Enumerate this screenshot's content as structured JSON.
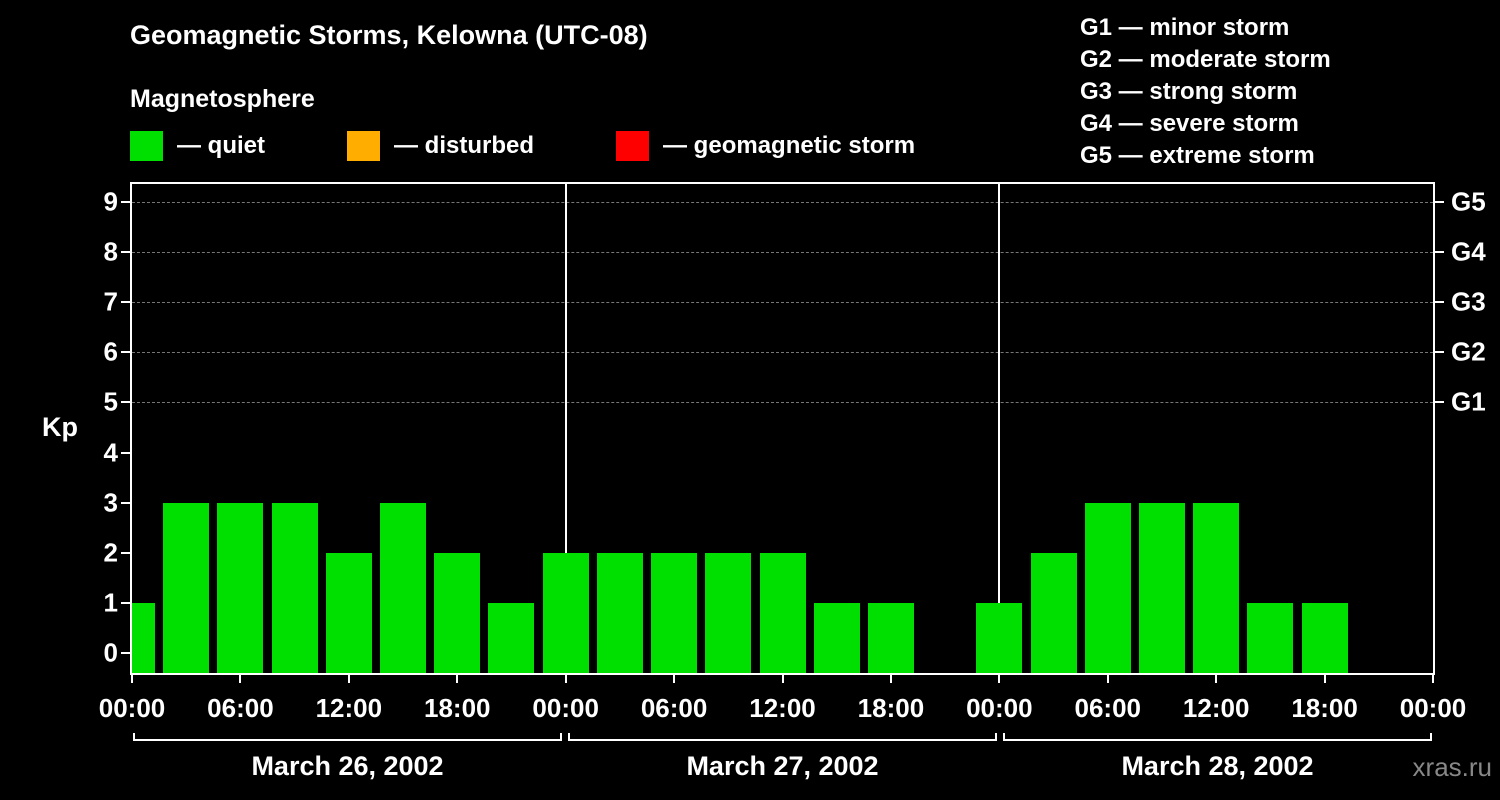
{
  "header": {
    "title": "Geomagnetic Storms, Kelowna (UTC-08)",
    "subtitle": "Magnetosphere",
    "legend": [
      {
        "label": "— quiet",
        "color": "#00e000"
      },
      {
        "label": "— disturbed",
        "color": "#ffae00"
      },
      {
        "label": "— geomagnetic storm",
        "color": "#ff0000"
      }
    ],
    "g_scale": [
      "G1 — minor storm",
      "G2 — moderate storm",
      "G3 — strong storm",
      "G4 — severe storm",
      "G5 — extreme storm"
    ]
  },
  "chart_data": {
    "type": "bar",
    "title": "Geomagnetic Storms, Kelowna (UTC-08)",
    "xlabel": "",
    "ylabel": "Kp",
    "ylim": [
      0,
      9.5
    ],
    "y_ticks": [
      0,
      1,
      2,
      3,
      4,
      5,
      6,
      7,
      8,
      9
    ],
    "grid": "dashed horizontal lines at Kp 5-9",
    "bar_color": "#00e000",
    "bar_interval_hours": 3,
    "right_axis": [
      {
        "label": "G1",
        "kp": 5
      },
      {
        "label": "G2",
        "kp": 6
      },
      {
        "label": "G3",
        "kp": 7
      },
      {
        "label": "G4",
        "kp": 8
      },
      {
        "label": "G5",
        "kp": 9
      }
    ],
    "x_tick_labels": [
      "00:00",
      "06:00",
      "12:00",
      "18:00",
      "00:00",
      "06:00",
      "12:00",
      "18:00",
      "00:00",
      "06:00",
      "12:00",
      "18:00",
      "00:00"
    ],
    "days": [
      {
        "label": "March 26, 2002",
        "kp": [
          1,
          3,
          3,
          3,
          2,
          3,
          2,
          1
        ]
      },
      {
        "label": "March 27, 2002",
        "kp": [
          2,
          2,
          2,
          2,
          2,
          1,
          1,
          null
        ]
      },
      {
        "label": "March 28, 2002",
        "kp": [
          1,
          2,
          3,
          3,
          3,
          1,
          1,
          null
        ]
      }
    ]
  },
  "footer": {
    "watermark": "xras.ru"
  }
}
